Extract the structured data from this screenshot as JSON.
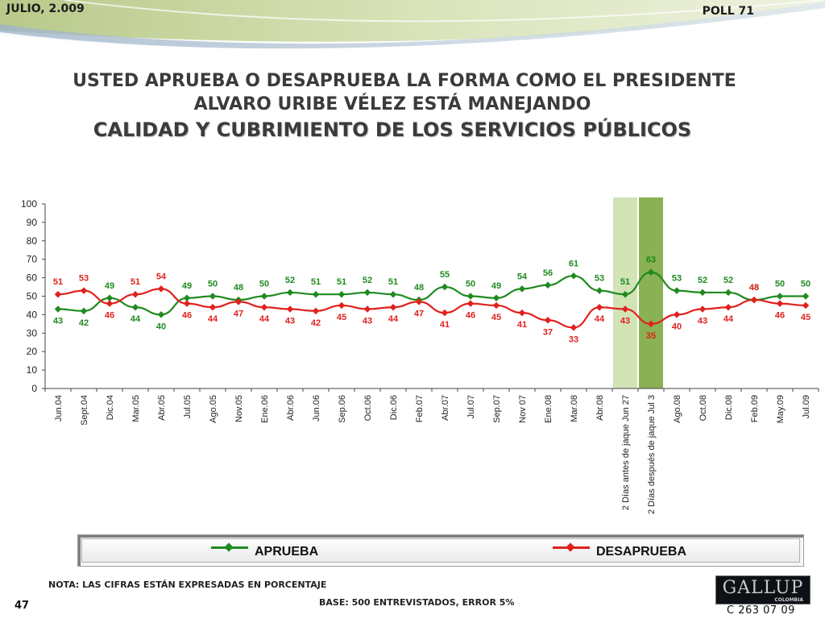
{
  "header": {
    "date": "JULIO, 2.009",
    "poll": "POLL 71"
  },
  "title": {
    "line1": "USTED APRUEBA O DESAPRUEBA LA FORMA COMO EL PRESIDENTE",
    "line2": "ALVARO URIBE VÉLEZ ESTÁ MANEJANDO",
    "line3": "CALIDAD Y CUBRIMIENTO DE LOS SERVICIOS PÚBLICOS"
  },
  "colors": {
    "aprueba": "#1f8a1f",
    "desaprueba": "#e0211e",
    "highlight_light": "#d2e3b6",
    "highlight_dark": "#8ab153"
  },
  "chart_data": {
    "type": "line",
    "categories": [
      "Jun.04",
      "Sept.04",
      "Dic.04",
      "Mar.05",
      "Abr.05",
      "Jul.05",
      "Ago.05",
      "Nov.05",
      "Ene.06",
      "Abr.06",
      "Jun.06",
      "Sep.06",
      "Oct.06",
      "Dic.06",
      "Feb.07",
      "Abr.07",
      "Jul.07",
      "Sep.07",
      "Nov 07",
      "Ene.08",
      "Mar.08",
      "Abr.08",
      "2 Días antes de jaque Jun 27",
      "2 Días después de jaque Jul 3",
      "Ago.08",
      "Oct.08",
      "Dic.08",
      "Feb.09",
      "May.09",
      "Jul.09"
    ],
    "series": [
      {
        "name": "APRUEBA",
        "values": [
          43,
          42,
          49,
          44,
          40,
          49,
          50,
          48,
          50,
          52,
          51,
          51,
          52,
          51,
          48,
          55,
          50,
          49,
          54,
          56,
          61,
          53,
          51,
          63,
          53,
          52,
          52,
          48,
          50,
          50
        ]
      },
      {
        "name": "DESAPRUEBA",
        "values": [
          51,
          53,
          46,
          51,
          54,
          46,
          44,
          47,
          44,
          43,
          42,
          45,
          43,
          44,
          47,
          41,
          46,
          45,
          41,
          37,
          33,
          44,
          43,
          35,
          40,
          43,
          44,
          48,
          46,
          45
        ]
      }
    ],
    "ylim": [
      0,
      100
    ],
    "yticks": [
      0,
      10,
      20,
      30,
      40,
      50,
      60,
      70,
      80,
      90,
      100
    ],
    "highlighted_categories": [
      "2 Días antes de jaque Jun 27",
      "2 Días después de jaque Jul 3"
    ],
    "legend_position": "bottom",
    "grid": false
  },
  "legend": {
    "aprueba": "APRUEBA",
    "desaprueba": "DESAPRUEBA"
  },
  "footer": {
    "nota": "NOTA: LAS CIFRAS ESTÁN EXPRESADAS EN PORCENTAJE",
    "base": "BASE: 500 ENTREVISTADOS, ERROR 5%",
    "page": "47",
    "code": "C 263 07 09",
    "logo": "GALLUP",
    "logo_sub": "COLOMBIA"
  }
}
